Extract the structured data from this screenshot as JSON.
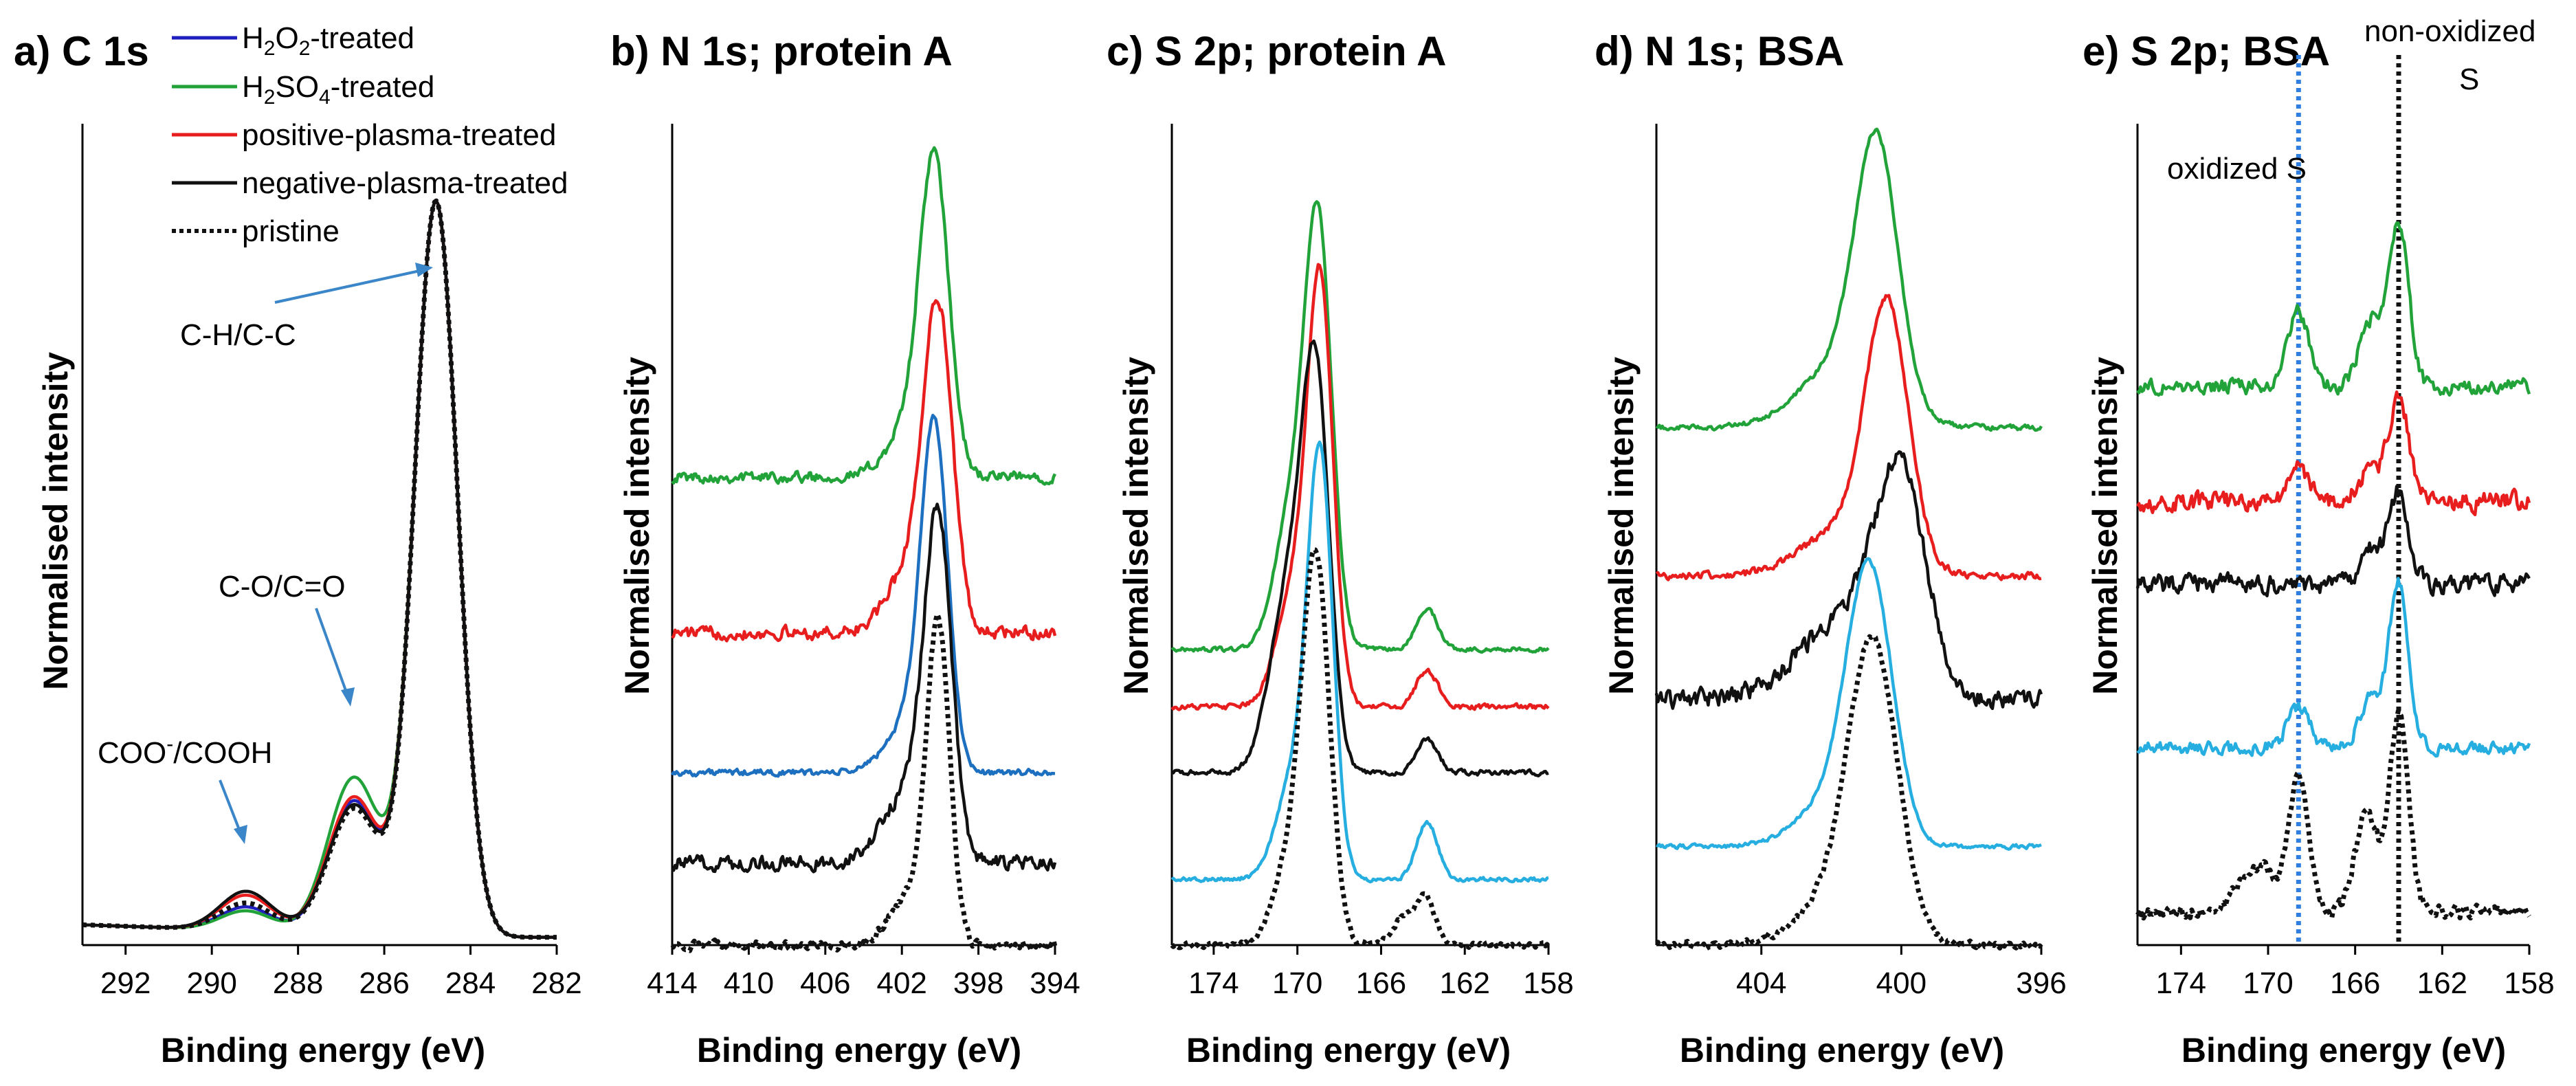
{
  "colors": {
    "H2O2": "#1f1fbf",
    "H2SO4": "#22a33a",
    "positive": "#e81e1e",
    "negative": "#111111",
    "pristine": "#111111",
    "lightblue": "#26aee0",
    "midblue": "#1d6fbf",
    "arrow": "#3a86c8",
    "guide_blue": "#2f7fe0"
  },
  "legend": [
    {
      "id": "h2o2",
      "text": "H2O2-treated",
      "main": "H",
      "sub1": "2",
      "mid": "O",
      "sub2": "2",
      "tail": "-treated",
      "color": "#1f1fbf",
      "dash": false
    },
    {
      "id": "h2so4",
      "text": "H2SO4-treated",
      "main": "H",
      "sub1": "2",
      "mid": "SO",
      "sub2": "4",
      "tail": "-treated",
      "color": "#22a33a",
      "dash": false
    },
    {
      "id": "pos",
      "text": "positive-plasma-treated",
      "color": "#e81e1e",
      "dash": false
    },
    {
      "id": "neg",
      "text": "negative-plasma-treated",
      "color": "#111111",
      "dash": false
    },
    {
      "id": "pri",
      "text": "pristine",
      "color": "#111111",
      "dash": true
    }
  ],
  "chart_data": [
    {
      "id": "a",
      "type": "line",
      "title": "a) C 1s",
      "xlabel": "Binding energy (eV)",
      "ylabel": "Normalised intensity",
      "xlim": [
        293,
        282
      ],
      "ylim": [
        0,
        1.05
      ],
      "xticks": [
        "292",
        "290",
        "288",
        "286",
        "284",
        "282"
      ],
      "xtick_values": [
        292,
        290,
        288,
        286,
        284,
        282
      ],
      "annotations": [
        "C-H/C-C",
        "C-O/C=O",
        "COO",
        "/COOH"
      ],
      "annotation_sup": "-",
      "series": [
        {
          "name": "H2O2-treated",
          "offset": 0,
          "color_key": "H2O2",
          "peaks": [
            [
              284.8,
              0.94,
              0.5
            ],
            [
              286.7,
              0.17,
              0.6
            ],
            [
              289.2,
              0.03,
              0.6
            ]
          ],
          "noise": 0,
          "baseline": 0.01
        },
        {
          "name": "H2SO4-treated",
          "offset": 0,
          "color_key": "H2SO4",
          "peaks": [
            [
              284.8,
              0.94,
              0.5
            ],
            [
              286.7,
              0.2,
              0.6
            ],
            [
              289.2,
              0.025,
              0.6
            ]
          ],
          "noise": 0,
          "baseline": 0.01
        },
        {
          "name": "positive-plasma-treated",
          "offset": 0,
          "color_key": "positive",
          "peaks": [
            [
              284.8,
              0.94,
              0.5
            ],
            [
              286.7,
              0.175,
              0.6
            ],
            [
              289.2,
              0.045,
              0.6
            ]
          ],
          "noise": 0,
          "baseline": 0.01
        },
        {
          "name": "negative-plasma-treated",
          "offset": 0,
          "color_key": "negative",
          "peaks": [
            [
              284.8,
              0.94,
              0.5
            ],
            [
              286.7,
              0.165,
              0.6
            ],
            [
              289.2,
              0.05,
              0.6
            ]
          ],
          "noise": 0,
          "baseline": 0.01
        },
        {
          "name": "pristine",
          "offset": 0,
          "color_key": "pristine",
          "dashed": true,
          "peaks": [
            [
              284.8,
              0.94,
              0.5
            ],
            [
              286.7,
              0.16,
              0.6
            ],
            [
              289.2,
              0.035,
              0.6
            ]
          ],
          "noise": 0,
          "baseline": 0.01
        }
      ]
    },
    {
      "id": "b",
      "type": "line",
      "title": "b) N 1s; protein A",
      "xlabel": "Binding energy (eV)",
      "ylabel": "Normalised intensity",
      "xlim": [
        414,
        394
      ],
      "ylim": [
        0,
        1.0
      ],
      "xticks": [
        "414",
        "410",
        "406",
        "402",
        "398",
        "394"
      ],
      "xtick_values": [
        414,
        410,
        406,
        402,
        398,
        394
      ],
      "series": [
        {
          "name": "H2SO4-treated",
          "offset": 0.57,
          "color_key": "H2SO4",
          "peaks": [
            [
              400.3,
              0.36,
              0.75
            ],
            [
              401.5,
              0.06,
              1.2
            ]
          ],
          "noise": 0.01,
          "baseline": 0
        },
        {
          "name": "positive-plasma-treated",
          "offset": 0.38,
          "color_key": "positive",
          "peaks": [
            [
              400.1,
              0.37,
              0.75
            ],
            [
              401.5,
              0.08,
              1.2
            ]
          ],
          "noise": 0.012,
          "baseline": 0
        },
        {
          "name": "H2O2-treated",
          "offset": 0.21,
          "color_key": "midblue",
          "peaks": [
            [
              400.3,
              0.4,
              0.7
            ],
            [
              401.6,
              0.06,
              1.2
            ]
          ],
          "noise": 0.006,
          "baseline": 0
        },
        {
          "name": "negative-plasma-treated",
          "offset": 0.1,
          "color_key": "negative",
          "peaks": [
            [
              400.1,
              0.39,
              0.7
            ],
            [
              401.6,
              0.09,
              1.3
            ]
          ],
          "noise": 0.014,
          "baseline": 0
        },
        {
          "name": "pristine",
          "offset": 0.0,
          "color_key": "pristine",
          "dashed": true,
          "peaks": [
            [
              400.1,
              0.38,
              0.6
            ],
            [
              401.6,
              0.06,
              1.0
            ]
          ],
          "noise": 0.008,
          "baseline": 0
        }
      ]
    },
    {
      "id": "c",
      "type": "line",
      "title": "c) S 2p; protein A",
      "xlabel": "Binding energy (eV)",
      "ylabel": "Normalised intensity",
      "xlim": [
        176,
        158
      ],
      "ylim": [
        0,
        1.0
      ],
      "xticks": [
        "174",
        "170",
        "166",
        "162",
        "158"
      ],
      "xtick_values": [
        174,
        170,
        166,
        162,
        158
      ],
      "series": [
        {
          "name": "H2SO4-treated",
          "offset": 0.36,
          "color_key": "H2SO4",
          "peaks": [
            [
              169.0,
              0.5,
              0.65
            ],
            [
              170.3,
              0.16,
              0.8
            ],
            [
              163.8,
              0.05,
              0.5
            ]
          ],
          "noise": 0.004,
          "baseline": 0
        },
        {
          "name": "positive-plasma-treated",
          "offset": 0.29,
          "color_key": "positive",
          "peaks": [
            [
              168.9,
              0.5,
              0.6
            ],
            [
              170.2,
              0.14,
              0.8
            ],
            [
              163.8,
              0.045,
              0.5
            ]
          ],
          "noise": 0.005,
          "baseline": 0
        },
        {
          "name": "negative-plasma-treated",
          "offset": 0.21,
          "color_key": "negative",
          "peaks": [
            [
              169.1,
              0.44,
              0.65
            ],
            [
              170.4,
              0.22,
              0.9
            ],
            [
              163.8,
              0.04,
              0.5
            ]
          ],
          "noise": 0.005,
          "baseline": 0
        },
        {
          "name": "H2O2-treated",
          "offset": 0.08,
          "color_key": "lightblue",
          "peaks": [
            [
              168.9,
              0.5,
              0.6
            ],
            [
              170.2,
              0.12,
              0.8
            ],
            [
              163.8,
              0.07,
              0.5
            ]
          ],
          "noise": 0.004,
          "baseline": 0
        },
        {
          "name": "pristine",
          "offset": 0.0,
          "color_key": "pristine",
          "dashed": true,
          "peaks": [
            [
              169.1,
              0.45,
              0.65
            ],
            [
              170.3,
              0.1,
              0.8
            ],
            [
              165.0,
              0.03,
              0.5
            ],
            [
              163.9,
              0.06,
              0.45
            ]
          ],
          "noise": 0.005,
          "baseline": 0
        }
      ]
    },
    {
      "id": "d",
      "type": "line",
      "title": "d) N 1s; BSA",
      "xlabel": "Binding energy (eV)",
      "ylabel": "Normalised intensity",
      "xlim": [
        407,
        396
      ],
      "ylim": [
        0,
        1.0
      ],
      "xticks": [
        "404",
        "400",
        "396"
      ],
      "xtick_values": [
        404,
        400,
        396
      ],
      "series": [
        {
          "name": "H2SO4-treated",
          "offset": 0.63,
          "color_key": "H2SO4",
          "peaks": [
            [
              400.7,
              0.3,
              0.6
            ],
            [
              401.6,
              0.08,
              1.2
            ]
          ],
          "noise": 0.005,
          "baseline": 0
        },
        {
          "name": "positive-plasma-treated",
          "offset": 0.45,
          "color_key": "positive",
          "peaks": [
            [
              400.4,
              0.3,
              0.6
            ],
            [
              401.5,
              0.06,
              1.2
            ]
          ],
          "noise": 0.007,
          "baseline": 0
        },
        {
          "name": "negative-plasma-treated",
          "offset": 0.3,
          "color_key": "negative",
          "peaks": [
            [
              400.0,
              0.24,
              0.7
            ],
            [
              401.5,
              0.1,
              1.3
            ]
          ],
          "noise": 0.018,
          "baseline": 0
        },
        {
          "name": "H2O2-treated",
          "offset": 0.12,
          "color_key": "lightblue",
          "peaks": [
            [
              400.9,
              0.32,
              0.65
            ],
            [
              402.0,
              0.05,
              1.0
            ]
          ],
          "noise": 0.004,
          "baseline": 0
        },
        {
          "name": "pristine",
          "offset": 0.0,
          "color_key": "pristine",
          "dashed": true,
          "peaks": [
            [
              400.8,
              0.35,
              0.7
            ],
            [
              402.0,
              0.05,
              1.0
            ]
          ],
          "noise": 0.006,
          "baseline": 0
        }
      ]
    },
    {
      "id": "e",
      "type": "line",
      "title": "e) S 2p; BSA",
      "xlabel": "Binding energy (eV)",
      "ylabel": "Normalised intensity",
      "xlim": [
        176,
        158
      ],
      "ylim": [
        0,
        1.0
      ],
      "xticks": [
        "174",
        "170",
        "166",
        "162",
        "158"
      ],
      "xtick_values": [
        174,
        170,
        166,
        162,
        158
      ],
      "annotations": [
        "oxidized S",
        "non-oxidized",
        "S"
      ],
      "guides": [
        {
          "x": 168.6,
          "color_key": "guide_blue",
          "label": "oxidized S"
        },
        {
          "x": 164.0,
          "color_key": "pristine",
          "label": "non-oxidized S"
        }
      ],
      "series": [
        {
          "name": "H2SO4-treated",
          "offset": 0.68,
          "color_key": "H2SO4",
          "peaks": [
            [
              164.0,
              0.2,
              0.45
            ],
            [
              165.3,
              0.08,
              0.5
            ],
            [
              168.6,
              0.09,
              0.5
            ]
          ],
          "noise": 0.014,
          "baseline": 0
        },
        {
          "name": "positive-plasma-treated",
          "offset": 0.54,
          "color_key": "positive",
          "peaks": [
            [
              164.0,
              0.13,
              0.45
            ],
            [
              165.3,
              0.04,
              0.5
            ],
            [
              168.6,
              0.04,
              0.5
            ]
          ],
          "noise": 0.018,
          "baseline": 0
        },
        {
          "name": "negative-plasma-treated",
          "offset": 0.44,
          "color_key": "negative",
          "peaks": [
            [
              164.0,
              0.11,
              0.45
            ],
            [
              165.3,
              0.04,
              0.5
            ]
          ],
          "noise": 0.018,
          "baseline": 0
        },
        {
          "name": "H2O2-treated",
          "offset": 0.24,
          "color_key": "lightblue",
          "peaks": [
            [
              164.0,
              0.2,
              0.45
            ],
            [
              165.3,
              0.06,
              0.5
            ],
            [
              168.6,
              0.05,
              0.5
            ]
          ],
          "noise": 0.012,
          "baseline": 0
        },
        {
          "name": "pristine",
          "offset": 0.04,
          "color_key": "pristine",
          "dashed": true,
          "peaks": [
            [
              164.0,
              0.24,
              0.45
            ],
            [
              165.5,
              0.12,
              0.5
            ],
            [
              168.6,
              0.16,
              0.45
            ],
            [
              170.5,
              0.06,
              0.8
            ]
          ],
          "noise": 0.012,
          "baseline": 0
        }
      ]
    }
  ]
}
